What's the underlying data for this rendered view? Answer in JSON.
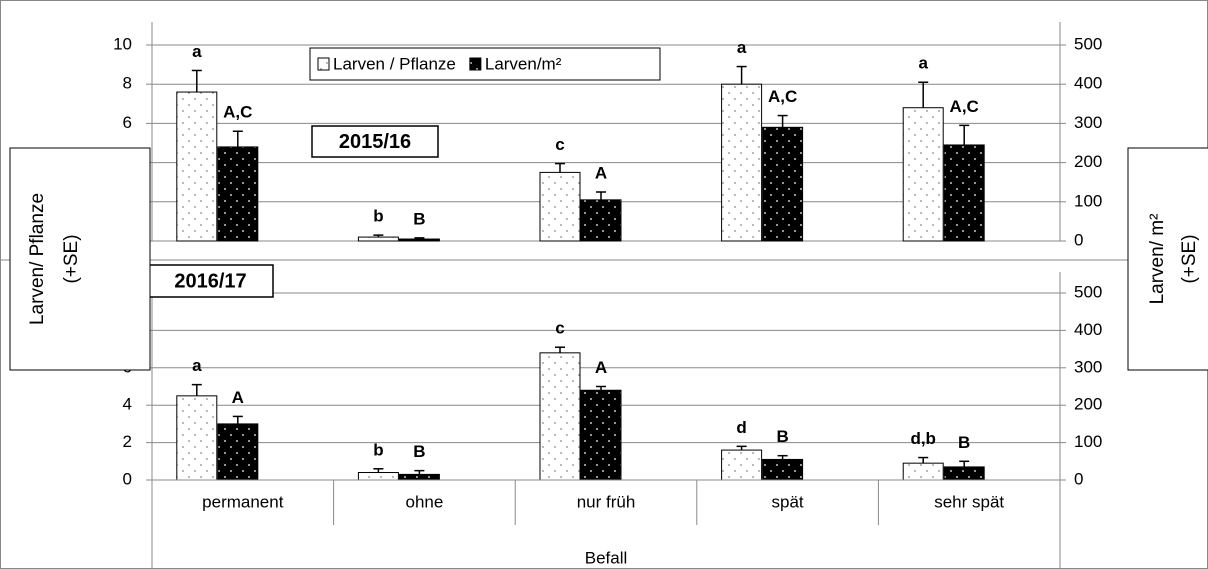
{
  "chart_data": [
    {
      "type": "bar",
      "panel_title": "2015/16",
      "ylim": [
        0,
        10
      ],
      "yticks": [
        0,
        2,
        4,
        6,
        8,
        10
      ],
      "y2lim": [
        0,
        500
      ],
      "y2ticks": [
        0,
        100,
        200,
        300,
        400,
        500
      ],
      "grid": true,
      "series": [
        {
          "name": "Larven / Pflanze",
          "color": "#ffffff",
          "values": [
            7.6,
            0.2,
            3.5,
            8.0,
            6.8
          ],
          "errors": [
            1.1,
            0.1,
            0.45,
            0.9,
            1.3
          ],
          "annotations": [
            "a",
            "b",
            "c",
            "a",
            "a"
          ]
        },
        {
          "name": "Larven/m²",
          "color": "#000000",
          "axis": "y2",
          "values": [
            240,
            5,
            105,
            290,
            245
          ],
          "errors": [
            40,
            3,
            20,
            30,
            50
          ],
          "annotations": [
            "A,C",
            "B",
            "A",
            "A,C",
            "A,C"
          ]
        }
      ]
    },
    {
      "type": "bar",
      "panel_title": "2016/17",
      "categories": [
        "permanent",
        "ohne",
        "nur früh",
        "spät",
        "sehr spät"
      ],
      "xlabel": "Befall",
      "ylabel": [
        "Larven/ Pflanze",
        "(+SE)"
      ],
      "y2label": [
        "Larven/ m²",
        "(+SE)"
      ],
      "ylim": [
        0,
        10
      ],
      "yticks": [
        0,
        2,
        4,
        6,
        8,
        10
      ],
      "y2lim": [
        0,
        500
      ],
      "y2ticks": [
        0,
        100,
        200,
        300,
        400,
        500
      ],
      "grid": true,
      "series": [
        {
          "color": "#ffffff",
          "values": [
            4.5,
            0.4,
            6.8,
            1.6,
            0.9
          ],
          "errors": [
            0.6,
            0.2,
            0.3,
            0.2,
            0.3
          ],
          "annotations": [
            "a",
            "b",
            "c",
            "d",
            "d,b"
          ]
        },
        {
          "color": "#000000",
          "axis": "y2",
          "values": [
            150,
            15,
            240,
            55,
            35
          ],
          "errors": [
            20,
            10,
            10,
            10,
            15
          ],
          "annotations": [
            "A",
            "B",
            "A",
            "B",
            "B"
          ]
        }
      ]
    }
  ]
}
